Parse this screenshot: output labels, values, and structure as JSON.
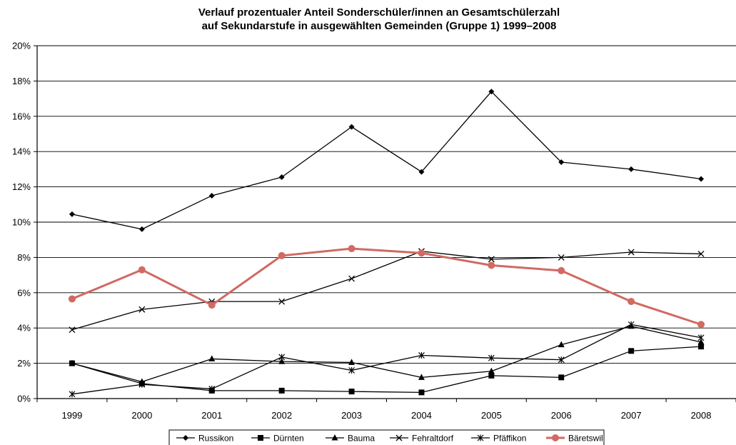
{
  "chart_data": {
    "type": "line",
    "title": "Verlauf prozentualer Anteil Sonderschüler/innen an Gesamtschülerzahl",
    "subtitle": "auf Sekundarstufe in ausgewählten Gemeinden (Gruppe 1) 1999–2008",
    "xlabel": "",
    "ylabel": "",
    "categories": [
      "1999",
      "2000",
      "2001",
      "2002",
      "2003",
      "2004",
      "2005",
      "2006",
      "2007",
      "2008"
    ],
    "ylim": [
      0,
      20
    ],
    "yticks": [
      "0%",
      "2%",
      "4%",
      "6%",
      "8%",
      "10%",
      "12%",
      "14%",
      "16%",
      "18%",
      "20%"
    ],
    "grid": "horizontal",
    "legend_position": "bottom",
    "series": [
      {
        "name": "Russikon",
        "marker": "diamond",
        "color": "#000000",
        "values": [
          10.45,
          9.6,
          11.5,
          12.55,
          15.4,
          12.85,
          17.4,
          13.4,
          13.0,
          12.45
        ]
      },
      {
        "name": "Dürnten",
        "marker": "square",
        "color": "#000000",
        "values": [
          2.0,
          0.85,
          0.45,
          0.45,
          0.4,
          0.35,
          1.3,
          1.2,
          2.7,
          2.95
        ]
      },
      {
        "name": "Bauma",
        "marker": "triangle",
        "color": "#000000",
        "values": [
          2.0,
          0.95,
          2.25,
          2.1,
          2.05,
          1.2,
          1.55,
          3.05,
          4.1,
          3.2
        ]
      },
      {
        "name": "Fehraltdorf",
        "marker": "x",
        "color": "#000000",
        "values": [
          3.9,
          5.05,
          5.5,
          5.5,
          6.8,
          8.35,
          7.9,
          8.0,
          8.3,
          8.2
        ]
      },
      {
        "name": "Pfäffikon",
        "marker": "asterisk",
        "color": "#000000",
        "values": [
          0.25,
          0.8,
          0.55,
          2.35,
          1.6,
          2.45,
          2.3,
          2.2,
          4.2,
          3.45
        ]
      },
      {
        "name": "Bäretswil",
        "marker": "circle",
        "color": "#d06a62",
        "values": [
          5.65,
          7.3,
          5.3,
          8.1,
          8.5,
          8.25,
          7.55,
          7.25,
          5.5,
          4.2
        ]
      }
    ]
  }
}
